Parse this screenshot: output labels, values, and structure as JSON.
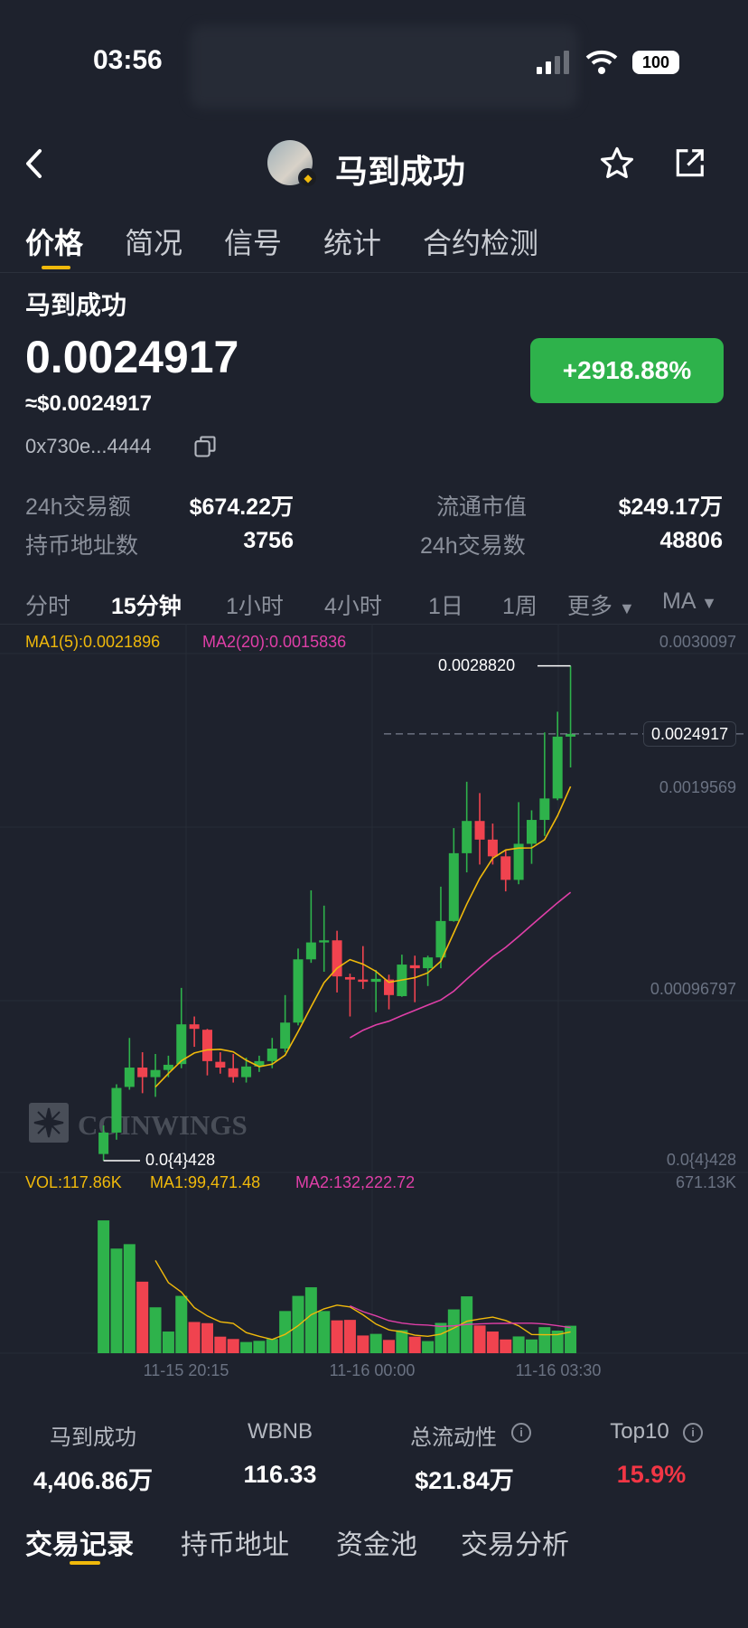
{
  "status_bar": {
    "time": "03:56",
    "battery": "100"
  },
  "header": {
    "title": "马到成功"
  },
  "tabs": [
    {
      "label": "价格"
    },
    {
      "label": "简况"
    },
    {
      "label": "信号"
    },
    {
      "label": "统计"
    },
    {
      "label": "合约检测"
    }
  ],
  "token": {
    "name": "马到成功",
    "price": "0.0024917",
    "usd_price": "≈$0.0024917",
    "address": "0x730e...4444",
    "change": "+2918.88%"
  },
  "stats": [
    {
      "label": "24h交易额",
      "value": "$674.22万"
    },
    {
      "label": "流通市值",
      "value": "$249.17万"
    },
    {
      "label": "持币地址数",
      "value": "3756"
    },
    {
      "label": "24h交易数",
      "value": "48806"
    }
  ],
  "timeframes": [
    {
      "label": "分时"
    },
    {
      "label": "15分钟"
    },
    {
      "label": "1小时"
    },
    {
      "label": "4小时"
    },
    {
      "label": "1日"
    },
    {
      "label": "1周"
    },
    {
      "label": "更多"
    },
    {
      "label": "MA"
    }
  ],
  "colors": {
    "up": "#2eb24b",
    "down": "#f0434f",
    "ma1": "#f0b90b",
    "ma2": "#e03fa8",
    "accent": "#f0b90b",
    "background": "#1e222d"
  },
  "chart_data": {
    "type": "candlestick",
    "ma_legend": {
      "ma1": "MA1(5):0.0021896",
      "ma2": "MA2(20):0.0015836"
    },
    "y_ticks": [
      "0.0030097",
      "0.0019569",
      "0.00096797",
      "0.0{4}428"
    ],
    "ylim": [
      4.28e-05,
      0.0030097
    ],
    "high_label": "0.0028820",
    "low_label": "0.0{4}428",
    "last_price_label": "0.0024917",
    "last_price": 0.0024917,
    "x_ticks": [
      "11-15 20:15",
      "11-16 00:00",
      "11-16 03:30"
    ],
    "watermark": "COINWINGS",
    "ohlc_fields": [
      "open",
      "high",
      "low",
      "close"
    ],
    "candles": [
      [
        8.1e-05,
        0.000245,
        4.28e-05,
        0.000204
      ],
      [
        0.000204,
        0.000481,
        0.000163,
        0.00046
      ],
      [
        0.000466,
        0.000747,
        0.00045,
        0.000577
      ],
      [
        0.000577,
        0.000665,
        0.00043,
        0.000522
      ],
      [
        0.000522,
        0.000655,
        0.000409,
        0.000563
      ],
      [
        0.000563,
        0.000645,
        0.000522,
        0.000593
      ],
      [
        0.000597,
        0.001034,
        0.000573,
        0.000825
      ],
      [
        0.000825,
        0.00087,
        0.000696,
        0.000799
      ],
      [
        0.000794,
        0.000799,
        0.000532,
        0.000614
      ],
      [
        0.00061,
        0.000665,
        0.000542,
        0.000577
      ],
      [
        0.000573,
        0.000655,
        0.000491,
        0.000522
      ],
      [
        0.000522,
        0.000634,
        0.000491,
        0.000583
      ],
      [
        0.000583,
        0.000645,
        0.000552,
        0.000614
      ],
      [
        0.000614,
        0.000747,
        0.000573,
        0.000686
      ],
      [
        0.000686,
        0.000993,
        0.000665,
        0.000835
      ],
      [
        0.000835,
        0.00126,
        0.000819,
        0.001198
      ],
      [
        0.001198,
        0.001594,
        0.001178,
        0.001295
      ],
      [
        0.001295,
        0.001506,
        0.001127,
        0.001307
      ],
      [
        0.001307,
        0.001362,
        0.001008,
        0.0011
      ],
      [
        0.001096,
        0.001116,
        0.00087,
        0.001082
      ],
      [
        0.001082,
        0.001274,
        0.001028,
        0.001069
      ],
      [
        0.001069,
        0.001137,
        0.000895,
        0.001086
      ],
      [
        0.001082,
        0.00111,
        0.000911,
        0.000993
      ],
      [
        0.000987,
        0.001225,
        0.000983,
        0.001168
      ],
      [
        0.001164,
        0.001219,
        0.000952,
        0.001147
      ],
      [
        0.001147,
        0.001219,
        0.001045,
        0.001209
      ],
      [
        0.001209,
        0.001615,
        0.001147,
        0.001418
      ],
      [
        0.001418,
        0.001951,
        0.001414,
        0.001807
      ],
      [
        0.001807,
        0.002217,
        0.001697,
        0.001992
      ],
      [
        0.001992,
        0.002152,
        0.001742,
        0.001885
      ],
      [
        0.001885,
        0.001977,
        0.001742,
        0.001789
      ],
      [
        0.001789,
        0.001824,
        0.001588,
        0.001654
      ],
      [
        0.001654,
        0.0021,
        0.001629,
        0.001861
      ],
      [
        0.001861,
        0.002053,
        0.001746,
        0.001998
      ],
      [
        0.001998,
        0.0025,
        0.001906,
        0.002121
      ],
      [
        0.002121,
        0.002619,
        0.002111,
        0.002476
      ],
      [
        0.002476,
        0.002882,
        0.002299,
        0.0024917
      ]
    ],
    "volume": {
      "legend": {
        "vol": "VOL:117.86K",
        "ma1": "MA1:99,471.48",
        "ma2": "MA2:132,222.72"
      },
      "max_label": "671.13K",
      "ylim": [
        0,
        671130
      ],
      "values": [
        570000,
        449000,
        468000,
        307000,
        197000,
        93000,
        246000,
        134000,
        129000,
        71000,
        61000,
        48000,
        53000,
        61000,
        181000,
        246000,
        283000,
        181000,
        141000,
        143000,
        76000,
        83000,
        57000,
        99000,
        71000,
        52000,
        130000,
        188000,
        244000,
        119000,
        93000,
        59000,
        72000,
        59000,
        112000,
        97000,
        117860
      ]
    }
  },
  "summary": [
    {
      "label": "马到成功",
      "value": "4,406.86万"
    },
    {
      "label": "WBNB",
      "value": "116.33"
    },
    {
      "label": "总流动性",
      "value": "$21.84万",
      "info": true
    },
    {
      "label": "Top10",
      "value": "15.9%",
      "info": true
    }
  ],
  "bottom_tabs": [
    {
      "label": "交易记录"
    },
    {
      "label": "持币地址"
    },
    {
      "label": "资金池"
    },
    {
      "label": "交易分析"
    }
  ]
}
